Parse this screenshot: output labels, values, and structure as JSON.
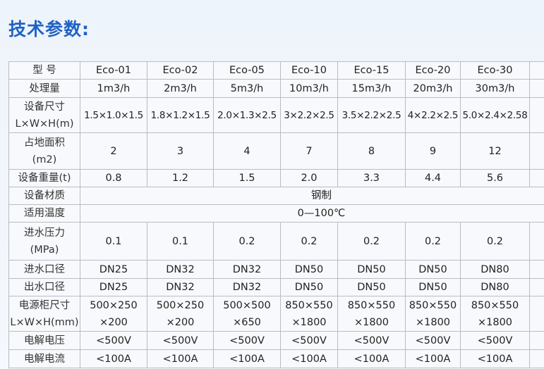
{
  "header": {
    "title": "技术参数:"
  },
  "table": {
    "columns": [
      "型 号",
      "Eco-01",
      "Eco-02",
      "Eco-05",
      "Eco-10",
      "Eco-15",
      "Eco-20",
      "Eco-30"
    ],
    "rows": [
      [
        "处理量",
        "1m3/h",
        "2m3/h",
        "5m3/h",
        "10m3/h",
        "15m3/h",
        "20m3/h",
        "30m3/h"
      ],
      [
        [
          "设备尺寸",
          "L×W×H(m)"
        ],
        "1.5×1.0×1.5",
        "1.8×1.2×1.5",
        "2.0×1.3×2.5",
        "3×2.2×2.5",
        "3.5×2.2×2.5",
        "4×2.2×2.5",
        "5.0×2.4×2.58"
      ],
      [
        [
          "占地面积",
          "(m2)"
        ],
        "2",
        "3",
        "4",
        "7",
        "8",
        "9",
        "12"
      ],
      [
        "设备重量(t)",
        "0.8",
        "1.2",
        "1.5",
        "2.0",
        "3.3",
        "4.4",
        "5.6"
      ],
      [
        "设备材质",
        "钢制"
      ],
      [
        "适用温度",
        "0—100℃"
      ],
      [
        [
          "进水压力",
          "(MPa)"
        ],
        "0.1",
        "0.1",
        "0.2",
        "0.2",
        "0.2",
        "0.2",
        "0.2"
      ],
      [
        "进水口径",
        "DN25",
        "DN32",
        "DN32",
        "DN50",
        "DN50",
        "DN50",
        "DN80"
      ],
      [
        "出水口径",
        "DN25",
        "DN32",
        "DN32",
        "DN50",
        "DN50",
        "DN50",
        "DN80"
      ],
      [
        [
          "电源柜尺寸",
          "L×W×H(mm)"
        ],
        [
          "500×250",
          "×200"
        ],
        [
          "500×250",
          "×200"
        ],
        [
          "500×500",
          "×650"
        ],
        [
          "850×550",
          "×1800"
        ],
        [
          "850×550",
          "×1800"
        ],
        [
          "850×550",
          "×1800"
        ],
        [
          "850×550",
          "×1800"
        ]
      ],
      [
        "电解电压",
        "<500V",
        "<500V",
        "<500V",
        "<500V",
        "<500V",
        "<500V",
        "<500V"
      ],
      [
        "电解电流",
        "<100A",
        "<100A",
        "<100A",
        "<100A",
        "<100A",
        "<100A",
        "<100A"
      ]
    ]
  }
}
